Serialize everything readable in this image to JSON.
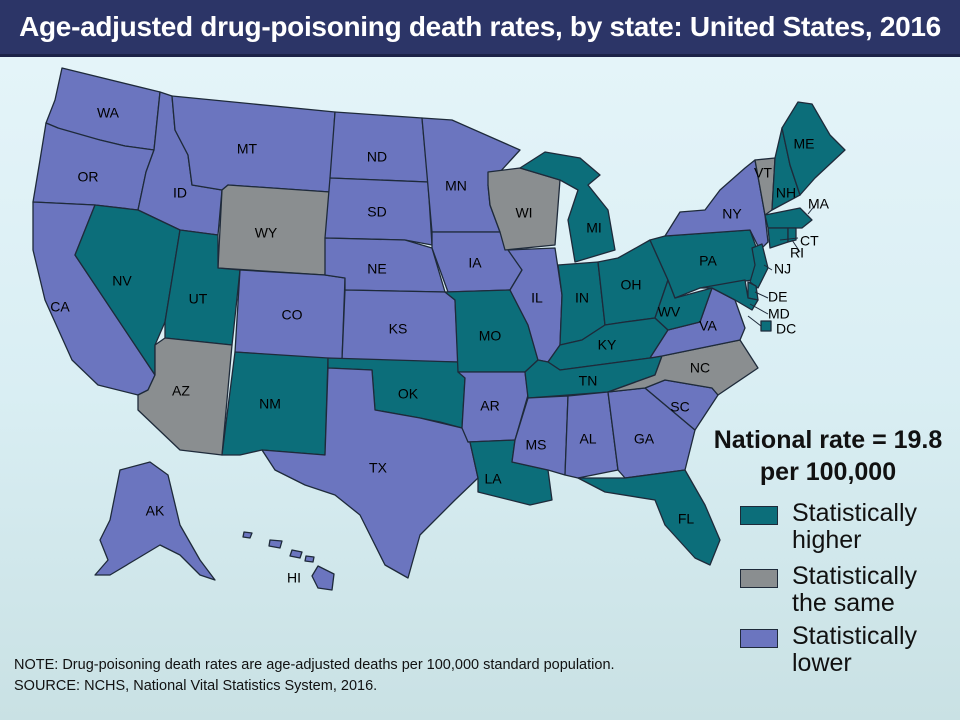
{
  "title": "Age-adjusted drug-poisoning death rates, by state: United States, 2016",
  "colors": {
    "higher": "#0c6e7a",
    "same": "#8a8e90",
    "lower": "#6b75bf",
    "title_bar": "#2c3567"
  },
  "national_rate": {
    "line1": "National rate = 19.8",
    "line2": "per 100,000"
  },
  "legend": [
    {
      "key": "higher",
      "line1": "Statistically",
      "line2": "higher"
    },
    {
      "key": "same",
      "line1": "Statistically",
      "line2": "the same"
    },
    {
      "key": "lower",
      "line1": "Statistically",
      "line2": "lower"
    }
  ],
  "states": [
    {
      "abbr": "WA",
      "category": "lower"
    },
    {
      "abbr": "OR",
      "category": "lower"
    },
    {
      "abbr": "CA",
      "category": "lower"
    },
    {
      "abbr": "ID",
      "category": "lower"
    },
    {
      "abbr": "NV",
      "category": "higher"
    },
    {
      "abbr": "MT",
      "category": "lower"
    },
    {
      "abbr": "WY",
      "category": "same"
    },
    {
      "abbr": "UT",
      "category": "higher"
    },
    {
      "abbr": "AZ",
      "category": "same"
    },
    {
      "abbr": "CO",
      "category": "lower"
    },
    {
      "abbr": "NM",
      "category": "higher"
    },
    {
      "abbr": "ND",
      "category": "lower"
    },
    {
      "abbr": "SD",
      "category": "lower"
    },
    {
      "abbr": "NE",
      "category": "lower"
    },
    {
      "abbr": "KS",
      "category": "lower"
    },
    {
      "abbr": "OK",
      "category": "higher"
    },
    {
      "abbr": "TX",
      "category": "lower"
    },
    {
      "abbr": "MN",
      "category": "lower"
    },
    {
      "abbr": "IA",
      "category": "lower"
    },
    {
      "abbr": "MO",
      "category": "higher"
    },
    {
      "abbr": "AR",
      "category": "lower"
    },
    {
      "abbr": "LA",
      "category": "higher"
    },
    {
      "abbr": "WI",
      "category": "same"
    },
    {
      "abbr": "IL",
      "category": "lower"
    },
    {
      "abbr": "MI",
      "category": "higher"
    },
    {
      "abbr": "IN",
      "category": "higher"
    },
    {
      "abbr": "OH",
      "category": "higher"
    },
    {
      "abbr": "KY",
      "category": "higher"
    },
    {
      "abbr": "TN",
      "category": "higher"
    },
    {
      "abbr": "MS",
      "category": "lower"
    },
    {
      "abbr": "AL",
      "category": "lower"
    },
    {
      "abbr": "GA",
      "category": "lower"
    },
    {
      "abbr": "FL",
      "category": "higher"
    },
    {
      "abbr": "SC",
      "category": "lower"
    },
    {
      "abbr": "NC",
      "category": "same"
    },
    {
      "abbr": "VA",
      "category": "lower"
    },
    {
      "abbr": "WV",
      "category": "higher"
    },
    {
      "abbr": "PA",
      "category": "higher"
    },
    {
      "abbr": "NY",
      "category": "lower"
    },
    {
      "abbr": "VT",
      "category": "same"
    },
    {
      "abbr": "NH",
      "category": "higher"
    },
    {
      "abbr": "ME",
      "category": "higher"
    },
    {
      "abbr": "MA",
      "category": "higher"
    },
    {
      "abbr": "RI",
      "category": "higher"
    },
    {
      "abbr": "CT",
      "category": "higher"
    },
    {
      "abbr": "NJ",
      "category": "higher"
    },
    {
      "abbr": "DE",
      "category": "higher"
    },
    {
      "abbr": "MD",
      "category": "higher"
    },
    {
      "abbr": "DC",
      "category": "higher"
    },
    {
      "abbr": "AK",
      "category": "lower"
    },
    {
      "abbr": "HI",
      "category": "lower"
    }
  ],
  "note": "NOTE: Drug-poisoning death rates are age-adjusted deaths per 100,000 standard population.",
  "source": "SOURCE: NCHS, National Vital Statistics System, 2016."
}
